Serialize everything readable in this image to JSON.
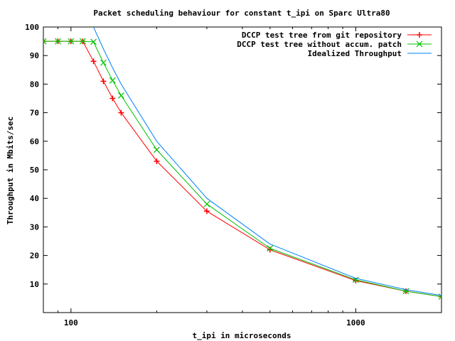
{
  "chart_data": {
    "type": "line",
    "title": "Packet scheduling behaviour for constant t_ipi on Sparc Ultra80",
    "xlabel": "t_ipi in microseconds",
    "ylabel": "Throughput in Mbits/sec",
    "xscale": "log",
    "xlim": [
      80,
      2000
    ],
    "ylim": [
      0,
      100
    ],
    "xticks": [
      100,
      1000
    ],
    "yticks": [
      10,
      20,
      30,
      40,
      50,
      60,
      70,
      80,
      90,
      100
    ],
    "grid": false,
    "legend_position": "top-right",
    "series": [
      {
        "name": "DCCP test tree from git repository",
        "color": "#ff0000",
        "marker": "plus",
        "x": [
          80,
          90,
          100,
          110,
          120,
          130,
          140,
          150,
          200,
          300,
          500,
          1000,
          1500,
          2000
        ],
        "y": [
          95,
          95,
          95,
          95,
          88,
          81,
          75,
          70,
          53,
          35.5,
          22,
          11.2,
          7.5,
          5.6
        ]
      },
      {
        "name": "DCCP test tree without accum. patch",
        "color": "#00c000",
        "marker": "cross",
        "x": [
          80,
          90,
          100,
          110,
          120,
          130,
          140,
          150,
          200,
          300,
          500,
          1000,
          1500,
          2000
        ],
        "y": [
          95,
          95,
          95,
          95,
          94.8,
          87.5,
          81.3,
          76,
          57,
          38,
          22.5,
          11.5,
          7.5,
          5.6
        ]
      },
      {
        "name": "Idealized Throughput",
        "color": "#0080ff",
        "marker": "none",
        "x": [
          110,
          120,
          130,
          140,
          150,
          200,
          300,
          500,
          1000,
          1500,
          2000
        ],
        "y": [
          109,
          100,
          92.3,
          85.7,
          80,
          60,
          40,
          24,
          12,
          8,
          6
        ]
      }
    ]
  }
}
